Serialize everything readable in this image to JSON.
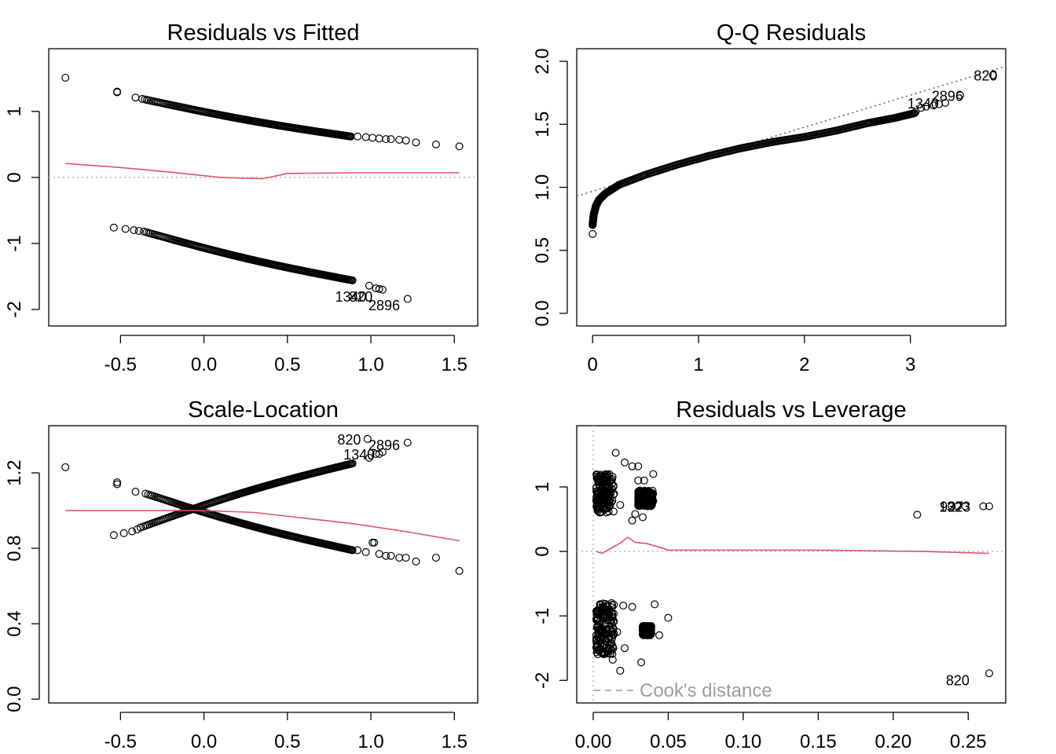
{
  "chart_data": [
    {
      "type": "scatter",
      "title": "Residuals vs Fitted",
      "xlabel": "",
      "ylabel": "",
      "xlim": [
        -0.93,
        1.64
      ],
      "ylim": [
        -2.25,
        1.95
      ],
      "xticks": [
        -0.5,
        0.0,
        0.5,
        1.0,
        1.5
      ],
      "xtick_labels": [
        "-0.5",
        "0.0",
        "0.5",
        "1.0",
        "1.5"
      ],
      "yticks": [
        -2,
        -1,
        0,
        1
      ],
      "ytick_labels": [
        "-2",
        "-1",
        "0",
        "1"
      ],
      "reference_line": {
        "y": 0,
        "style": "dotted",
        "color": "#bebebe"
      },
      "point_bands": [
        {
          "x_start": -0.37,
          "x_end": 0.88,
          "y_start": 1.19,
          "y_end": 0.62
        },
        {
          "x_start": -0.36,
          "x_end": 0.89,
          "y_start": -0.82,
          "y_end": -1.56
        }
      ],
      "points": [
        [
          -0.83,
          1.51
        ],
        [
          -0.52,
          1.29
        ],
        [
          -0.52,
          1.3
        ],
        [
          -0.41,
          1.21
        ],
        [
          0.92,
          0.62
        ],
        [
          0.97,
          0.61
        ],
        [
          1.01,
          0.6
        ],
        [
          1.05,
          0.59
        ],
        [
          1.09,
          0.58
        ],
        [
          1.12,
          0.58
        ],
        [
          1.17,
          0.57
        ],
        [
          1.21,
          0.56
        ],
        [
          1.27,
          0.53
        ],
        [
          1.39,
          0.5
        ],
        [
          1.53,
          0.47
        ],
        [
          -0.54,
          -0.76
        ],
        [
          -0.47,
          -0.78
        ],
        [
          -0.42,
          -0.8
        ],
        [
          -0.39,
          -0.81
        ],
        [
          0.99,
          -1.64
        ],
        [
          1.03,
          -1.68
        ],
        [
          1.05,
          -1.69
        ],
        [
          1.07,
          -1.7
        ],
        [
          1.22,
          -1.84
        ]
      ],
      "smooth": [
        [
          -0.83,
          0.21
        ],
        [
          -0.5,
          0.15
        ],
        [
          -0.2,
          0.08
        ],
        [
          0.1,
          0.0
        ],
        [
          0.35,
          -0.02
        ],
        [
          0.5,
          0.06
        ],
        [
          0.9,
          0.07
        ],
        [
          1.2,
          0.07
        ],
        [
          1.53,
          0.07
        ]
      ],
      "smooth_color": "#df536b",
      "labels": [
        {
          "text": "1340",
          "x": 0.88,
          "y": -1.8
        },
        {
          "text": "820",
          "x": 0.94,
          "y": -1.8
        },
        {
          "text": "2896",
          "x": 1.08,
          "y": -1.93
        }
      ]
    },
    {
      "type": "scatter",
      "title": "Q-Q Residuals",
      "xlabel": "",
      "ylabel": "",
      "xlim": [
        -0.15,
        3.9
      ],
      "ylim": [
        -0.1,
        2.1
      ],
      "xticks": [
        0,
        1,
        2,
        3
      ],
      "xtick_labels": [
        "0",
        "1",
        "2",
        "3"
      ],
      "yticks": [
        0.0,
        0.5,
        1.0,
        1.5,
        2.0
      ],
      "ytick_labels": [
        "0.0",
        "0.5",
        "1.0",
        "1.5",
        "2.0"
      ],
      "reference_line": {
        "x1": -0.15,
        "y1": 0.93,
        "x2": 3.9,
        "y2": 1.96,
        "style": "dotted",
        "color": "#666666"
      },
      "curve": [
        [
          0.0,
          0.7
        ],
        [
          0.01,
          0.78
        ],
        [
          0.03,
          0.85
        ],
        [
          0.06,
          0.9
        ],
        [
          0.12,
          0.95
        ],
        [
          0.25,
          1.02
        ],
        [
          0.5,
          1.1
        ],
        [
          0.8,
          1.18
        ],
        [
          1.1,
          1.25
        ],
        [
          1.4,
          1.31
        ],
        [
          1.7,
          1.36
        ],
        [
          2.0,
          1.4
        ],
        [
          2.3,
          1.45
        ],
        [
          2.6,
          1.51
        ],
        [
          2.85,
          1.55
        ],
        [
          3.05,
          1.59
        ]
      ],
      "points": [
        [
          0.0,
          0.63
        ],
        [
          3.05,
          1.6
        ],
        [
          3.1,
          1.63
        ],
        [
          3.15,
          1.64
        ],
        [
          3.22,
          1.65
        ],
        [
          3.27,
          1.66
        ],
        [
          3.33,
          1.67
        ],
        [
          3.47,
          1.73
        ],
        [
          3.78,
          1.89
        ]
      ],
      "labels": [
        {
          "text": "820",
          "x": 3.71,
          "y": 1.89
        },
        {
          "text": "2896",
          "x": 3.35,
          "y": 1.73
        },
        {
          "text": "1340",
          "x": 3.12,
          "y": 1.67
        }
      ]
    },
    {
      "type": "scatter",
      "title": "Scale-Location",
      "xlabel": "",
      "ylabel": "",
      "xlim": [
        -0.93,
        1.64
      ],
      "ylim": [
        -0.02,
        1.45
      ],
      "xticks": [
        -0.5,
        0.0,
        0.5,
        1.0,
        1.5
      ],
      "xtick_labels": [
        "-0.5",
        "0.0",
        "0.5",
        "1.0",
        "1.5"
      ],
      "yticks": [
        0.0,
        0.4,
        0.8,
        1.2
      ],
      "ytick_labels": [
        "0.0",
        "0.4",
        "0.8",
        "1.2"
      ],
      "point_bands": [
        {
          "x_start": -0.35,
          "x_end": 0.89,
          "y_start": 1.09,
          "y_end": 0.79
        },
        {
          "x_start": -0.38,
          "x_end": 0.89,
          "y_start": 0.91,
          "y_end": 1.25
        }
      ],
      "points": [
        [
          -0.83,
          1.23
        ],
        [
          -0.52,
          1.14
        ],
        [
          -0.52,
          1.15
        ],
        [
          -0.41,
          1.1
        ],
        [
          -0.54,
          0.87
        ],
        [
          -0.48,
          0.88
        ],
        [
          -0.43,
          0.89
        ],
        [
          -0.4,
          0.9
        ],
        [
          0.92,
          0.79
        ],
        [
          0.97,
          0.78
        ],
        [
          1.01,
          0.83
        ],
        [
          1.02,
          0.83
        ],
        [
          1.05,
          0.77
        ],
        [
          1.09,
          0.76
        ],
        [
          1.12,
          0.76
        ],
        [
          1.17,
          0.75
        ],
        [
          1.21,
          0.75
        ],
        [
          1.27,
          0.73
        ],
        [
          1.39,
          0.75
        ],
        [
          1.53,
          0.68
        ],
        [
          0.99,
          1.28
        ],
        [
          1.03,
          1.3
        ],
        [
          1.05,
          1.3
        ],
        [
          1.07,
          1.31
        ],
        [
          1.22,
          1.36
        ],
        [
          0.98,
          1.38
        ]
      ],
      "smooth": [
        [
          -0.83,
          1.0
        ],
        [
          -0.4,
          1.0
        ],
        [
          0.0,
          1.0
        ],
        [
          0.3,
          0.99
        ],
        [
          0.6,
          0.96
        ],
        [
          0.9,
          0.93
        ],
        [
          1.2,
          0.89
        ],
        [
          1.53,
          0.84
        ]
      ],
      "smooth_color": "#df536b",
      "labels": [
        {
          "text": "820",
          "x": 0.87,
          "y": 1.38
        },
        {
          "text": "2896",
          "x": 1.08,
          "y": 1.35
        },
        {
          "text": "1340",
          "x": 0.93,
          "y": 1.3
        }
      ]
    },
    {
      "type": "scatter",
      "title": "Residuals vs Leverage",
      "xlabel": "",
      "ylabel": "",
      "xlim": [
        -0.011,
        0.275
      ],
      "ylim": [
        -2.35,
        1.95
      ],
      "xticks": [
        0.0,
        0.05,
        0.1,
        0.15,
        0.2,
        0.25
      ],
      "xtick_labels": [
        "0.00",
        "0.05",
        "0.10",
        "0.15",
        "0.20",
        "0.25"
      ],
      "yticks": [
        -2,
        -1,
        0,
        1
      ],
      "ytick_labels": [
        "-2",
        "-1",
        "0",
        "1"
      ],
      "reference_lines": [
        {
          "y": 0,
          "style": "dotted",
          "color": "#bebebe"
        },
        {
          "x": 0,
          "style": "dotted",
          "color": "#bebebe"
        }
      ],
      "clusters": [
        {
          "x_min": 0.002,
          "x_max": 0.014,
          "y_min": 0.6,
          "y_max": 1.2
        },
        {
          "x_min": 0.002,
          "x_max": 0.014,
          "y_min": -1.6,
          "y_max": -0.8
        },
        {
          "x_min": 0.03,
          "x_max": 0.04,
          "y_min": 0.7,
          "y_max": 0.95
        },
        {
          "x_min": 0.033,
          "x_max": 0.039,
          "y_min": -1.3,
          "y_max": -1.15
        }
      ],
      "points": [
        [
          0.015,
          1.53
        ],
        [
          0.021,
          1.38
        ],
        [
          0.026,
          1.32
        ],
        [
          0.03,
          1.32
        ],
        [
          0.034,
          1.1
        ],
        [
          0.04,
          1.2
        ],
        [
          0.03,
          1.1
        ],
        [
          0.033,
          0.9
        ],
        [
          0.028,
          0.58
        ],
        [
          0.033,
          0.53
        ],
        [
          0.04,
          0.78
        ],
        [
          0.026,
          0.48
        ],
        [
          0.018,
          0.72
        ],
        [
          0.02,
          -0.84
        ],
        [
          0.026,
          -0.86
        ],
        [
          0.041,
          -0.82
        ],
        [
          0.05,
          -1.03
        ],
        [
          0.044,
          -1.3
        ],
        [
          0.016,
          -1.25
        ],
        [
          0.021,
          -1.5
        ],
        [
          0.032,
          -1.72
        ],
        [
          0.013,
          -1.68
        ],
        [
          0.018,
          -1.85
        ],
        [
          0.216,
          0.57
        ],
        [
          0.239,
          0.7
        ],
        [
          0.243,
          0.7
        ],
        [
          0.248,
          0.7
        ],
        [
          0.26,
          0.7
        ],
        [
          0.264,
          0.7
        ],
        [
          0.264,
          -1.89
        ]
      ],
      "smooth": [
        [
          0.002,
          0.0
        ],
        [
          0.006,
          -0.03
        ],
        [
          0.012,
          0.05
        ],
        [
          0.018,
          0.13
        ],
        [
          0.023,
          0.22
        ],
        [
          0.028,
          0.14
        ],
        [
          0.036,
          0.12
        ],
        [
          0.045,
          0.06
        ],
        [
          0.05,
          0.02
        ],
        [
          0.08,
          0.02
        ],
        [
          0.15,
          0.02
        ],
        [
          0.22,
          0.0
        ],
        [
          0.264,
          -0.03
        ]
      ],
      "smooth_color": "#df536b",
      "labels": [
        {
          "text": "927",
          "x": 0.239,
          "y": 0.7
        },
        {
          "text": "1323",
          "x": 0.241,
          "y": 0.7
        },
        {
          "text": "820",
          "x": 0.243,
          "y": -1.99
        }
      ],
      "legend": {
        "text": "Cook's distance",
        "line_style": "dashed",
        "color": "#9e9e9e",
        "position": "bottom-left"
      }
    }
  ]
}
